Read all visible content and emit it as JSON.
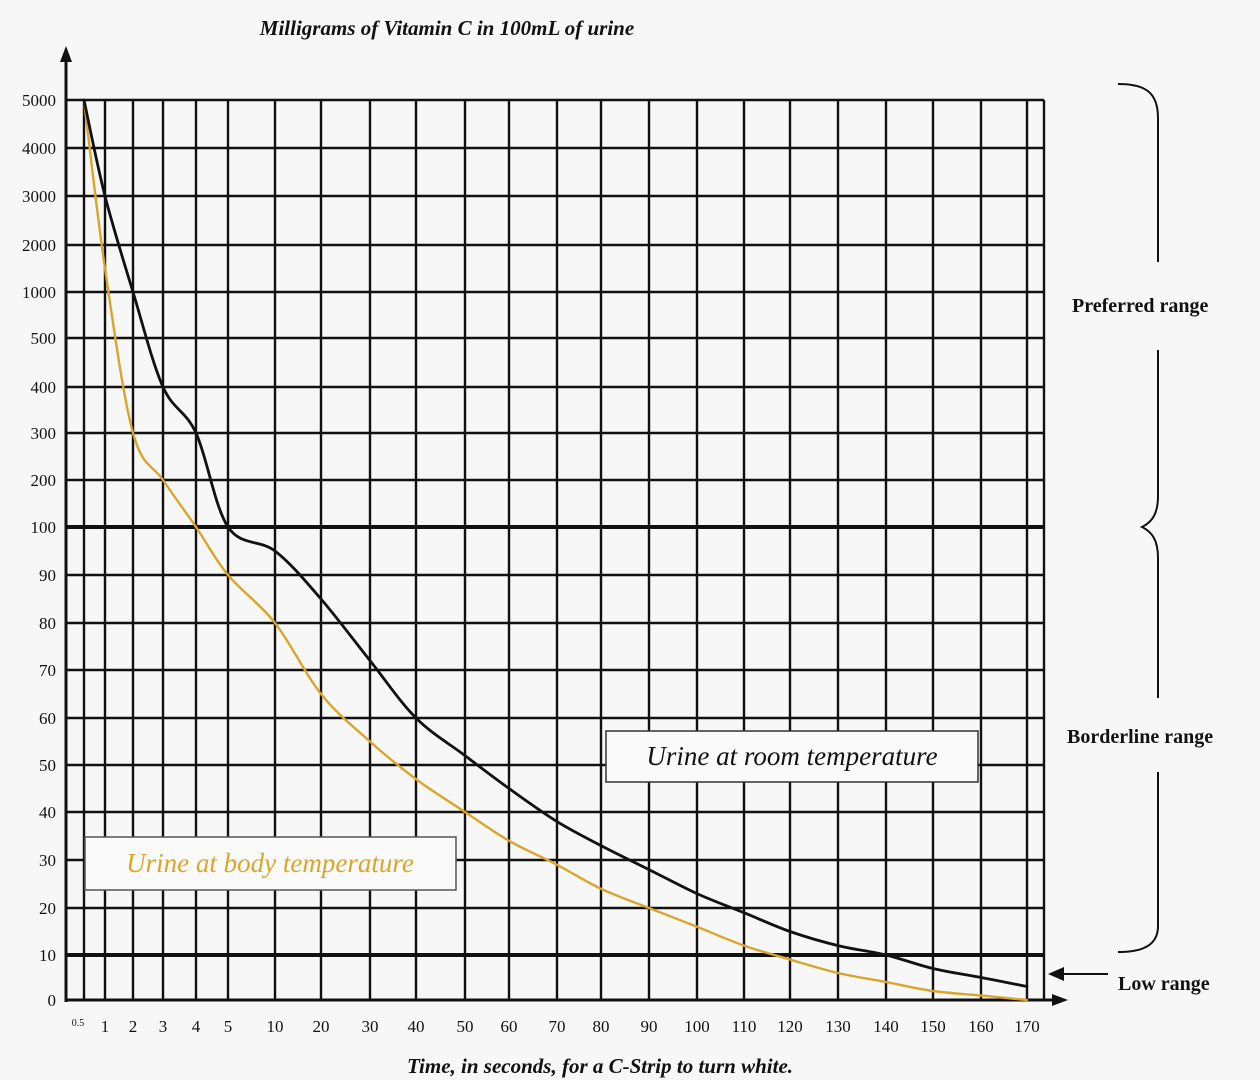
{
  "chart_data": {
    "type": "line",
    "title": "Milligrams of Vitamin C in 100mL of urine",
    "xlabel": "Time, in seconds, for a C-Strip to turn white.",
    "ylabel": "",
    "x_ticks": [
      "0.5",
      "1",
      "2",
      "3",
      "4",
      "5",
      "10",
      "20",
      "30",
      "40",
      "50",
      "60",
      "70",
      "80",
      "90",
      "100",
      "110",
      "120",
      "130",
      "140",
      "150",
      "160",
      "170"
    ],
    "y_ticks": [
      "0",
      "10",
      "20",
      "30",
      "40",
      "50",
      "60",
      "70",
      "80",
      "90",
      "100",
      "200",
      "300",
      "400",
      "500",
      "1000",
      "2000",
      "3000",
      "4000",
      "5000"
    ],
    "axis_scale": "piecewise (categorical ticks, non-uniform values)",
    "grid": true,
    "reference_lines": [
      10,
      100
    ],
    "ranges": [
      {
        "label": "Preferred range",
        "from": 100,
        "to": 5000
      },
      {
        "label": "Borderline range",
        "from": 10,
        "to": 100
      },
      {
        "label": "Low range",
        "from": 0,
        "to": 10
      }
    ],
    "series": [
      {
        "name": "Urine at room temperature",
        "color": "#111111",
        "x": [
          0.5,
          1,
          2,
          3,
          4,
          5,
          10,
          20,
          30,
          40,
          50,
          60,
          70,
          80,
          90,
          100,
          110,
          120,
          130,
          140,
          150,
          160,
          170
        ],
        "y": [
          5000,
          3000,
          1000,
          400,
          300,
          100,
          95,
          85,
          72,
          60,
          52,
          45,
          38,
          33,
          28,
          23,
          19,
          15,
          12,
          10,
          7,
          5,
          3
        ]
      },
      {
        "name": "Urine at body temperature",
        "color": "#d9a62b",
        "x": [
          0.5,
          1,
          2,
          3,
          4,
          5,
          10,
          20,
          30,
          40,
          50,
          60,
          70,
          80,
          90,
          100,
          110,
          120,
          130,
          140,
          150,
          160,
          170
        ],
        "y": [
          5000,
          1500,
          300,
          200,
          100,
          90,
          80,
          65,
          55,
          47,
          40,
          34,
          29,
          24,
          20,
          16,
          12,
          9,
          6,
          4,
          2,
          1,
          0
        ]
      }
    ]
  }
}
